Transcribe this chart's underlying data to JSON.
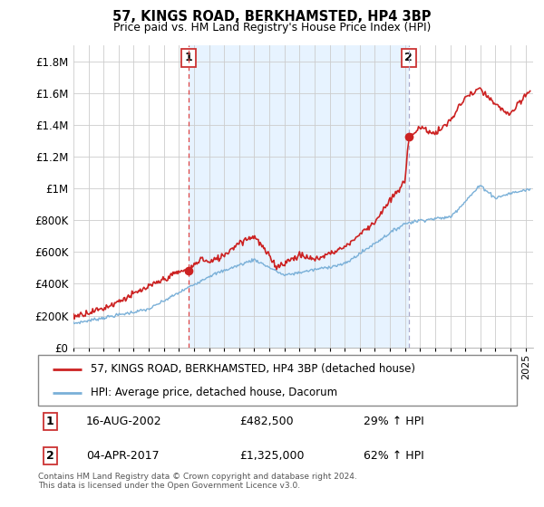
{
  "title": "57, KINGS ROAD, BERKHAMSTED, HP4 3BP",
  "subtitle": "Price paid vs. HM Land Registry's House Price Index (HPI)",
  "ylabel_ticks": [
    "£0",
    "£200K",
    "£400K",
    "£600K",
    "£800K",
    "£1M",
    "£1.2M",
    "£1.4M",
    "£1.6M",
    "£1.8M"
  ],
  "ytick_values": [
    0,
    200000,
    400000,
    600000,
    800000,
    1000000,
    1200000,
    1400000,
    1600000,
    1800000
  ],
  "ylim": [
    0,
    1900000
  ],
  "xlim_start": 1995.0,
  "xlim_end": 2025.5,
  "red_line_color": "#cc2222",
  "blue_line_color": "#7ab0d8",
  "shade_color": "#ddeeff",
  "marker1_date": 2002.62,
  "marker1_value": 482500,
  "marker2_date": 2017.25,
  "marker2_value": 1325000,
  "legend_line1": "57, KINGS ROAD, BERKHAMSTED, HP4 3BP (detached house)",
  "legend_line2": "HPI: Average price, detached house, Dacorum",
  "annotation1_num": "1",
  "annotation1_date": "16-AUG-2002",
  "annotation1_price": "£482,500",
  "annotation1_hpi": "29% ↑ HPI",
  "annotation2_num": "2",
  "annotation2_date": "04-APR-2017",
  "annotation2_price": "£1,325,000",
  "annotation2_hpi": "62% ↑ HPI",
  "footer1": "Contains HM Land Registry data © Crown copyright and database right 2024.",
  "footer2": "This data is licensed under the Open Government Licence v3.0.",
  "background_color": "#ffffff",
  "grid_color": "#cccccc"
}
